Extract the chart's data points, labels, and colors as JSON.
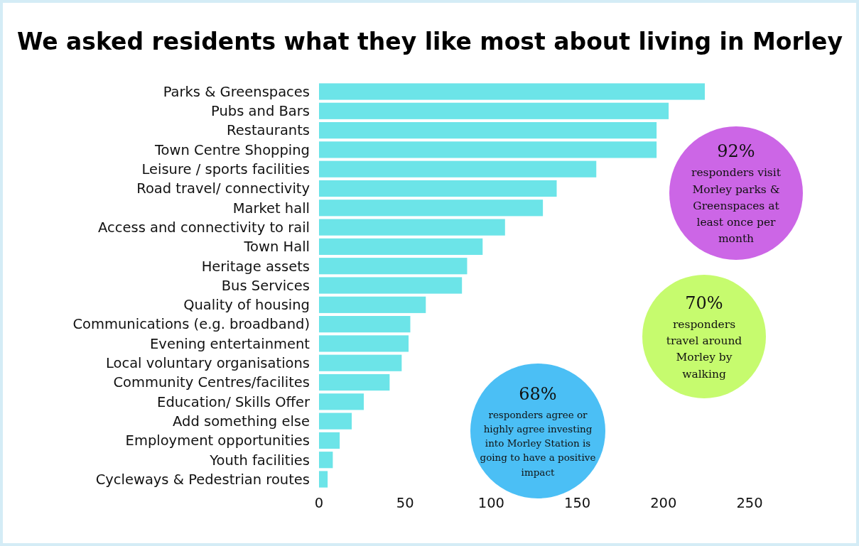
{
  "chart_data": {
    "type": "bar",
    "orientation": "horizontal",
    "title": "We asked residents what they like most about living in Morley",
    "categories": [
      "Parks & Greenspaces",
      "Pubs and Bars",
      "Restaurants",
      "Town Centre Shopping",
      "Leisure / sports facilities",
      "Road travel/ connectivity",
      "Market hall",
      "Access and connectivity to rail",
      "Town Hall",
      "Heritage assets",
      "Bus Services",
      "Quality of housing",
      "Communications (e.g. broadband)",
      "Evening entertainment",
      "Local voluntary organisations",
      "Community Centres/facilites",
      "Education/ Skills Offer",
      "Add something else",
      "Employment opportunities",
      "Youth facilities",
      "Cycleways & Pedestrian routes"
    ],
    "values": [
      224,
      203,
      196,
      196,
      161,
      138,
      130,
      108,
      95,
      86,
      83,
      62,
      53,
      52,
      48,
      41,
      26,
      19,
      12,
      8,
      5
    ],
    "color": "#6ce4e8",
    "xlim": [
      0,
      250
    ],
    "xticks": [
      0,
      50,
      100,
      150,
      200,
      250
    ],
    "grid": false,
    "annotations": [
      "92%\nresponders visit\nMorley parks &\nGreenspaces at\nleast once per\nmonth",
      "70%\nresponders\ntravel around\nMorley by\nwalking",
      "68%\nresponders agree or\nhighly agree investing\ninto Morley Station is\ngoing to have a positive\nimpact"
    ]
  }
}
